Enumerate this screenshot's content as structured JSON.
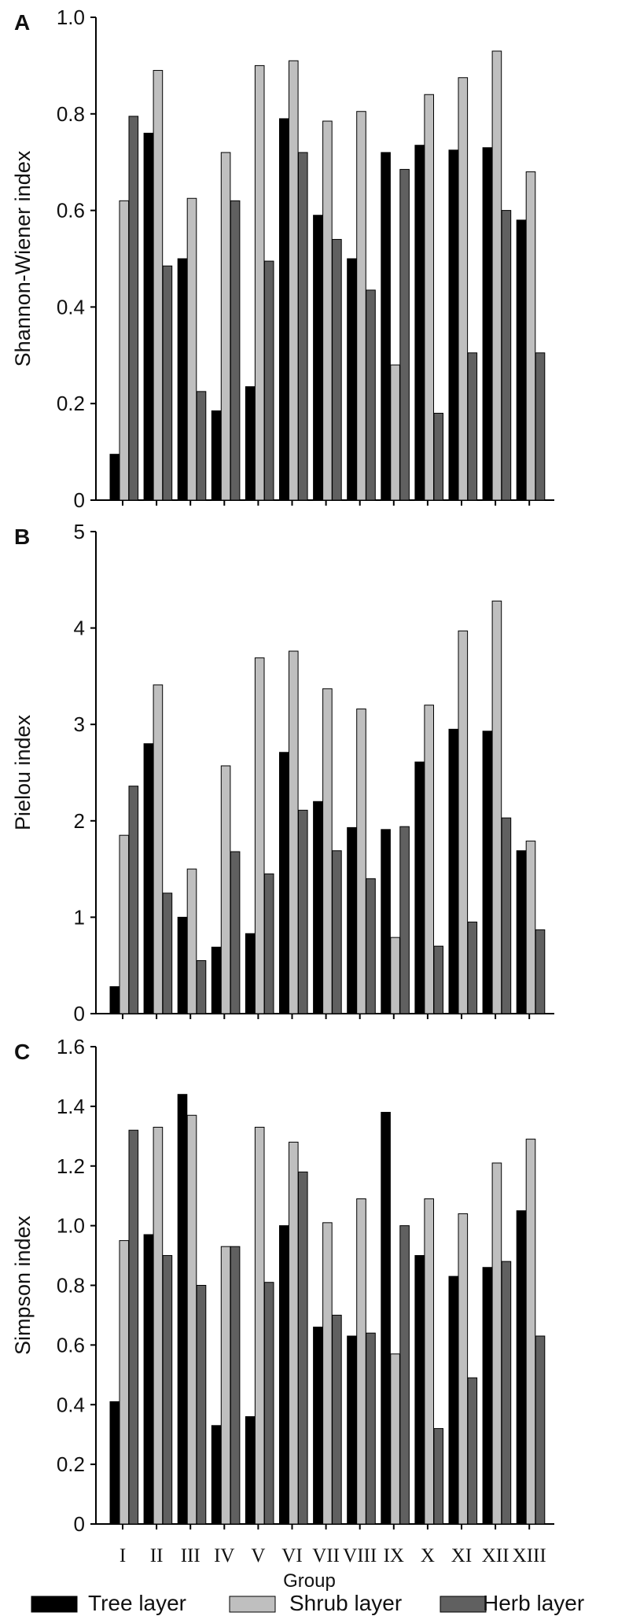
{
  "chart_data": [
    {
      "type": "bar",
      "panel": "A",
      "ylabel": "Shannon-Wiener index",
      "ylim": [
        0,
        1.0
      ],
      "yticks": [
        "0",
        "0.2",
        "0.4",
        "0.6",
        "0.8",
        "1.0"
      ],
      "categories": [
        "I",
        "II",
        "III",
        "IV",
        "V",
        "VI",
        "VII",
        "VIII",
        "IX",
        "X",
        "XI",
        "XII",
        "XIII"
      ],
      "series": [
        {
          "name": "Tree layer",
          "values": [
            0.095,
            0.76,
            0.5,
            0.185,
            0.235,
            0.79,
            0.59,
            0.5,
            0.72,
            0.735,
            0.725,
            0.73,
            0.58
          ]
        },
        {
          "name": "Shrub layer",
          "values": [
            0.62,
            0.89,
            0.625,
            0.72,
            0.9,
            0.91,
            0.785,
            0.805,
            0.28,
            0.84,
            0.875,
            0.93,
            0.68
          ]
        },
        {
          "name": "Herb layer",
          "values": [
            0.795,
            0.485,
            0.225,
            0.62,
            0.495,
            0.72,
            0.54,
            0.435,
            0.685,
            0.18,
            0.305,
            0.6,
            0.305
          ]
        }
      ]
    },
    {
      "type": "bar",
      "panel": "B",
      "ylabel": "Pielou index",
      "ylim": [
        0,
        5
      ],
      "yticks": [
        "0",
        "1",
        "2",
        "3",
        "4",
        "5"
      ],
      "categories": [
        "I",
        "II",
        "III",
        "IV",
        "V",
        "VI",
        "VII",
        "VIII",
        "IX",
        "X",
        "XI",
        "XII",
        "XIII"
      ],
      "series": [
        {
          "name": "Tree layer",
          "values": [
            0.28,
            2.8,
            1.0,
            0.69,
            0.83,
            2.71,
            2.2,
            1.93,
            1.91,
            2.61,
            2.95,
            2.93,
            1.69
          ]
        },
        {
          "name": "Shrub layer",
          "values": [
            1.85,
            3.41,
            1.5,
            2.57,
            3.69,
            3.76,
            3.37,
            3.16,
            0.79,
            3.2,
            3.97,
            4.28,
            1.79
          ]
        },
        {
          "name": "Herb layer",
          "values": [
            2.36,
            1.25,
            0.55,
            1.68,
            1.45,
            2.11,
            1.69,
            1.4,
            1.94,
            0.7,
            0.95,
            2.03,
            0.87
          ]
        }
      ]
    },
    {
      "type": "bar",
      "panel": "C",
      "ylabel": "Simpson index",
      "xlabel": "Group",
      "ylim": [
        0,
        1.6
      ],
      "yticks": [
        "0",
        "0.2",
        "0.4",
        "0.6",
        "0.8",
        "1.0",
        "1.2",
        "1.4",
        "1.6"
      ],
      "categories": [
        "I",
        "II",
        "III",
        "IV",
        "V",
        "VI",
        "VII",
        "VIII",
        "IX",
        "X",
        "XI",
        "XII",
        "XIII"
      ],
      "series": [
        {
          "name": "Tree layer",
          "values": [
            0.41,
            0.97,
            1.44,
            0.33,
            0.36,
            1.0,
            0.66,
            0.63,
            1.38,
            0.9,
            0.83,
            0.86,
            1.05
          ]
        },
        {
          "name": "Shrub layer",
          "values": [
            0.95,
            1.33,
            1.37,
            0.93,
            1.33,
            1.28,
            1.01,
            1.09,
            0.57,
            1.09,
            1.04,
            1.21,
            1.29
          ]
        },
        {
          "name": "Herb layer",
          "values": [
            1.32,
            0.9,
            0.8,
            0.93,
            0.81,
            1.18,
            0.7,
            0.64,
            1.0,
            0.32,
            0.49,
            0.88,
            0.63
          ]
        }
      ]
    }
  ],
  "legend": {
    "placement": "bottom",
    "items": [
      {
        "label": "Tree layer",
        "color": "#000000"
      },
      {
        "label": "Shrub layer",
        "color": "#bfbfbf"
      },
      {
        "label": "Herb layer",
        "color": "#606060"
      }
    ]
  },
  "colors": {
    "tree": "#000000",
    "shrub": "#bfbfbf",
    "herb": "#606060",
    "axis": "#000000"
  }
}
